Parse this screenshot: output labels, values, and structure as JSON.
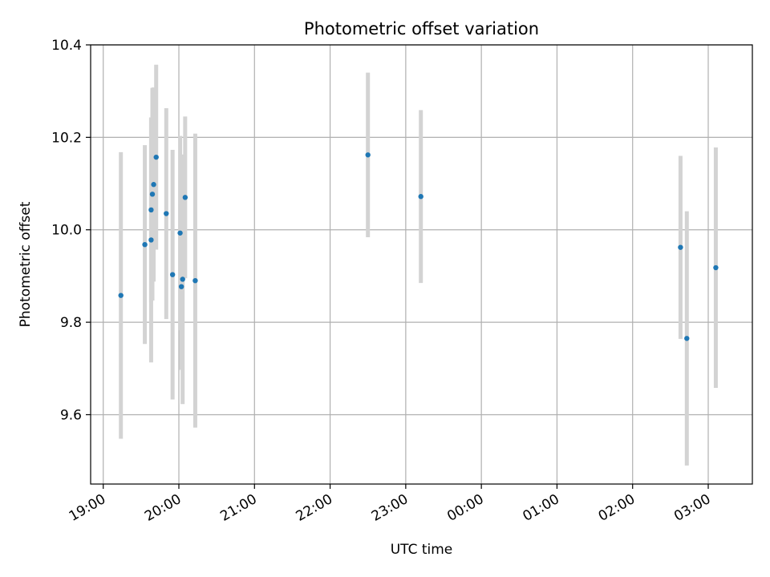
{
  "chart_data": {
    "type": "scatter",
    "title": "Photometric offset variation",
    "xlabel": "UTC time",
    "ylabel": "Photometric offset",
    "x_ticks": [
      "19:00",
      "20:00",
      "21:00",
      "22:00",
      "23:00",
      "00:00",
      "01:00",
      "02:00",
      "03:00"
    ],
    "y_ticks": [
      "9.6",
      "9.8",
      "10.0",
      "10.2",
      "10.4"
    ],
    "xlim_minutes_from_start": [
      -10,
      515
    ],
    "ylim": [
      9.45,
      10.4
    ],
    "grid": true,
    "points": [
      {
        "time": "19:14",
        "y": 9.858,
        "err": 0.31
      },
      {
        "time": "19:33",
        "y": 9.968,
        "err": 0.215
      },
      {
        "time": "19:38",
        "y": 9.978,
        "err": 0.265
      },
      {
        "time": "19:38",
        "y": 10.043,
        "err": 0.2
      },
      {
        "time": "19:39",
        "y": 10.077,
        "err": 0.23
      },
      {
        "time": "19:40",
        "y": 10.098,
        "err": 0.21
      },
      {
        "time": "19:42",
        "y": 10.157,
        "err": 0.2
      },
      {
        "time": "19:50",
        "y": 10.035,
        "err": 0.228
      },
      {
        "time": "19:55",
        "y": 9.903,
        "err": 0.27
      },
      {
        "time": "20:01",
        "y": 9.993,
        "err": 0.21
      },
      {
        "time": "20:02",
        "y": 9.877,
        "err": 0.18
      },
      {
        "time": "20:03",
        "y": 9.893,
        "err": 0.27
      },
      {
        "time": "20:05",
        "y": 10.07,
        "err": 0.175
      },
      {
        "time": "20:13",
        "y": 9.89,
        "err": 0.318
      },
      {
        "time": "22:30",
        "y": 10.162,
        "err": 0.178
      },
      {
        "time": "23:12",
        "y": 10.072,
        "err": 0.187
      },
      {
        "time": "02:38",
        "y": 9.962,
        "err": 0.198
      },
      {
        "time": "02:43",
        "y": 9.765,
        "err": 0.275
      },
      {
        "time": "03:06",
        "y": 9.918,
        "err": 0.26
      }
    ],
    "point_color": "#1f77b4",
    "errorbar_color": "#d3d3d3",
    "grid_color": "#b0b0b0"
  }
}
